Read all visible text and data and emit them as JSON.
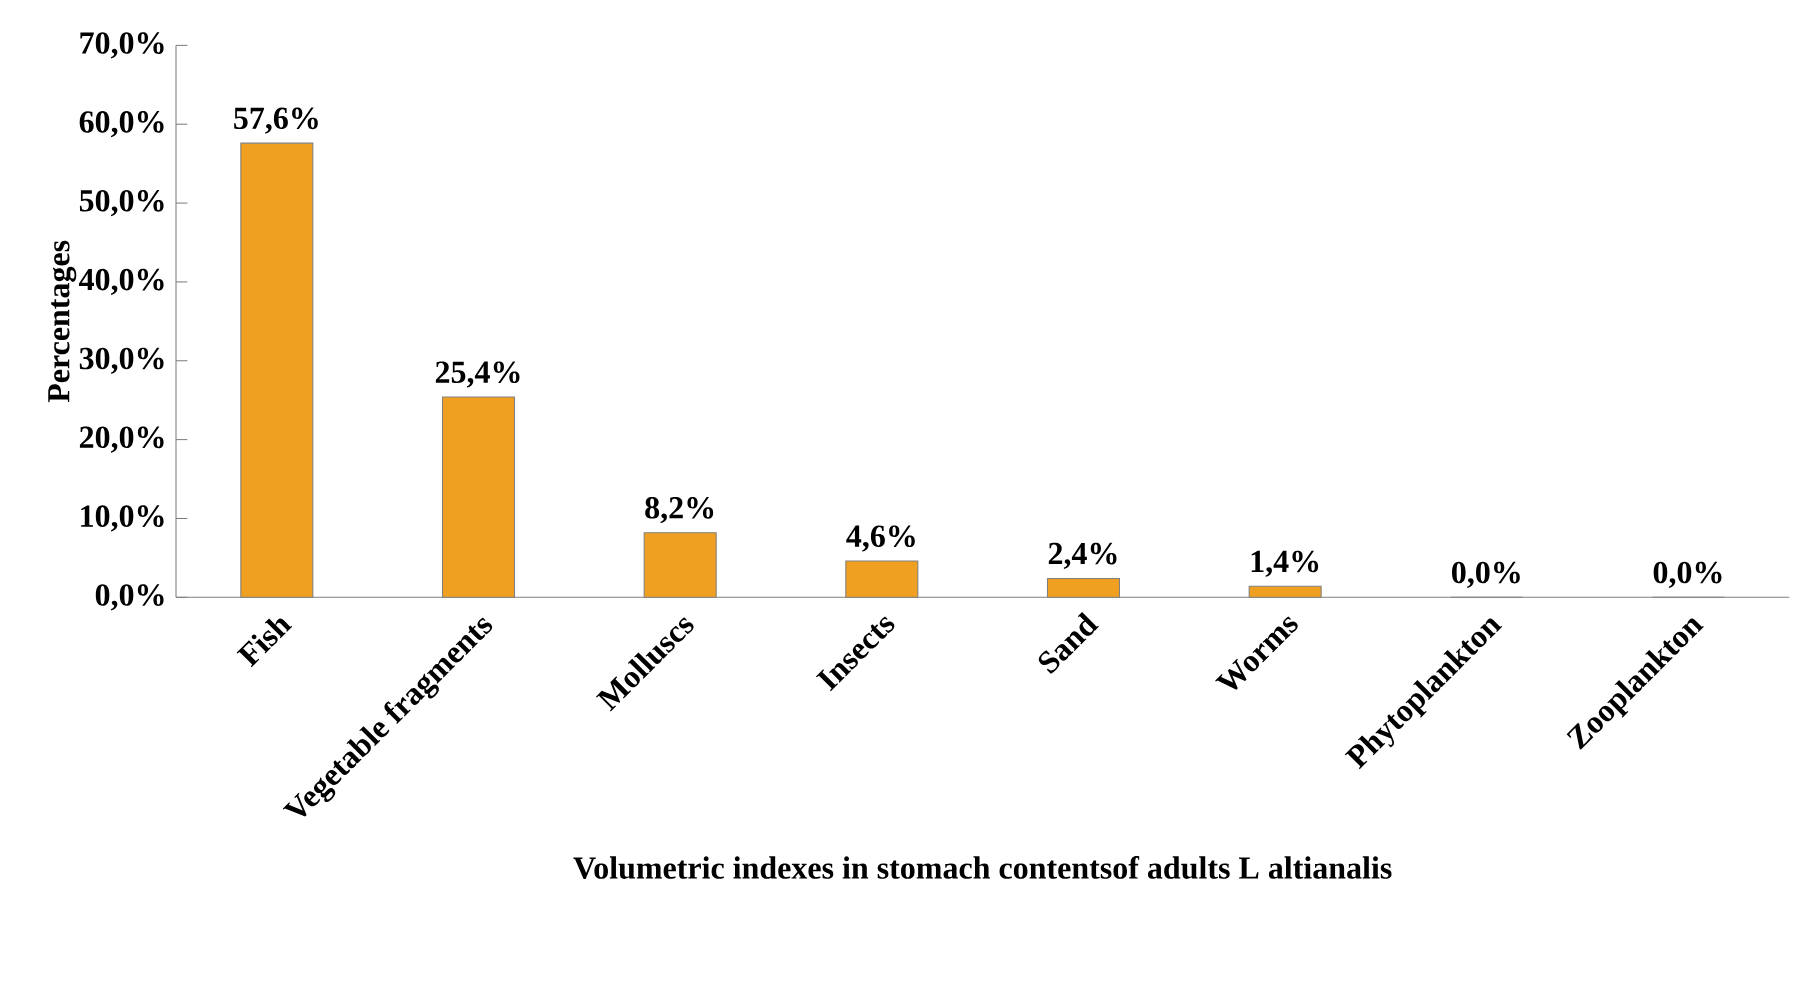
{
  "chart_data": {
    "type": "bar",
    "xlabel": "Volumetric indexes in stomach contentsof adults L altianalis",
    "ylabel": "Percentages",
    "categories": [
      "Fish",
      "Vegetable fragments",
      "Molluscs",
      "Insects",
      "Sand",
      "Worms",
      "Phytoplankton",
      "Zooplankton"
    ],
    "values": [
      57.6,
      25.4,
      8.2,
      4.6,
      2.4,
      1.4,
      0.0,
      0.0
    ],
    "value_labels": [
      "57,6%",
      "25,4%",
      "8,2%",
      "4,6%",
      "2,4%",
      "1,4%",
      "0,0%",
      "0,0%"
    ],
    "color": "#f0a020",
    "ylim": [
      0,
      70
    ],
    "yticks": [
      {
        "value": 0,
        "label": "0,0%"
      },
      {
        "value": 10,
        "label": "10,0%"
      },
      {
        "value": 20,
        "label": "20,0%"
      },
      {
        "value": 30,
        "label": "30,0%"
      },
      {
        "value": 40,
        "label": "40,0%"
      },
      {
        "value": 50,
        "label": "50,0%"
      },
      {
        "value": 60,
        "label": "60,0%"
      },
      {
        "value": 70,
        "label": "70,0%"
      }
    ],
    "grid": false
  }
}
